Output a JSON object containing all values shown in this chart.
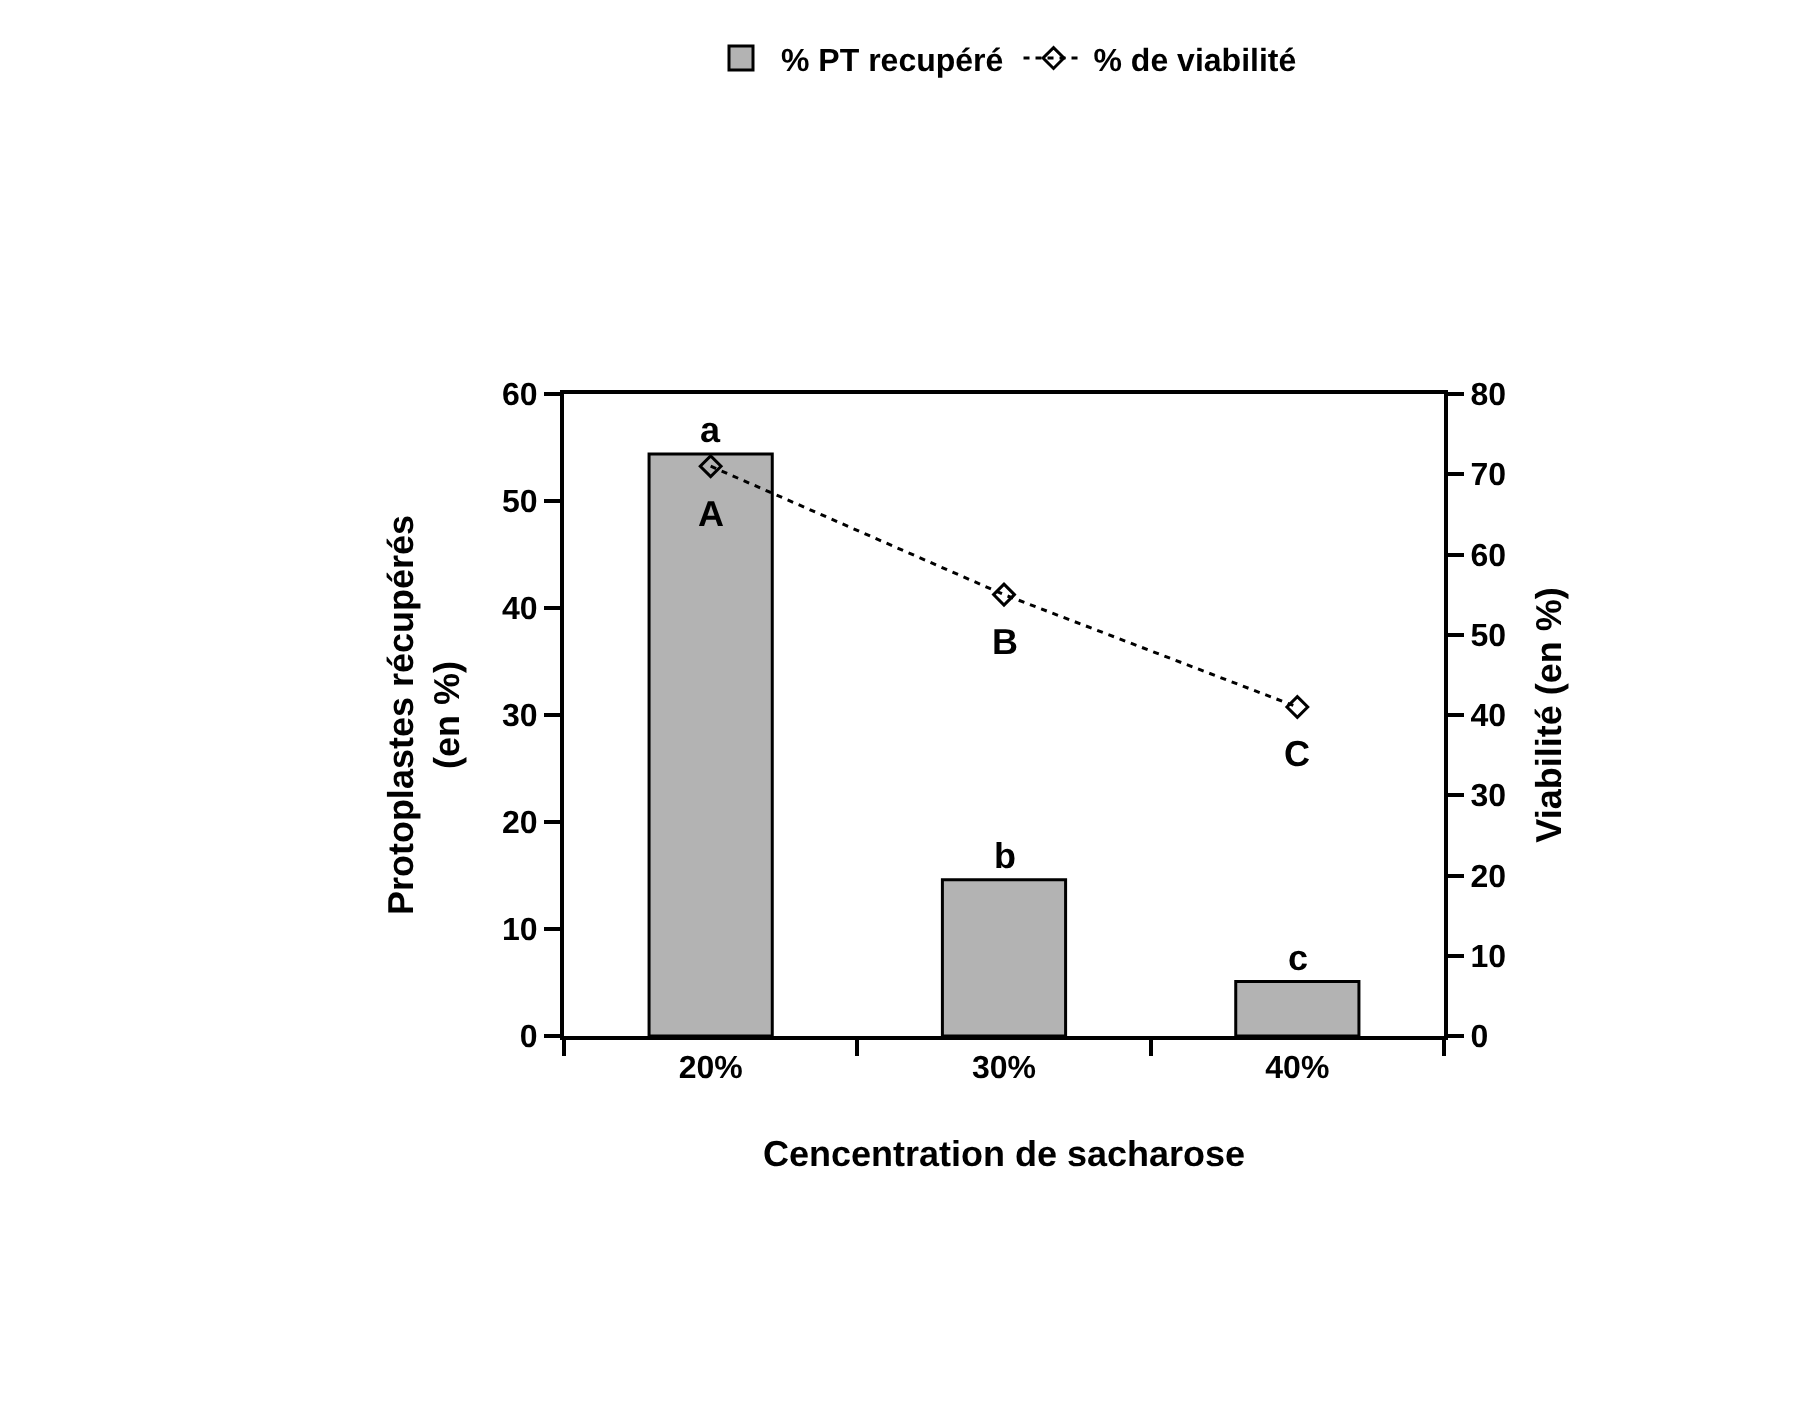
{
  "chart_data": {
    "type": "bar",
    "xlabel": "Cencentration de sacharose",
    "ylabel": "Protoplastes récupérés (en %)",
    "y2label": "Viabilité (en %)",
    "categories": [
      "20%",
      "30%",
      "40%"
    ],
    "series": [
      {
        "name": "% PT recupéré",
        "color": "#b3b3b3",
        "values": [
          54.4,
          14.6,
          5.1
        ]
      },
      {
        "name": "% de viabilité",
        "type": "line",
        "axis": "y2",
        "color": "#000000",
        "marker": "diamond",
        "line_style": "dotted",
        "values": [
          71,
          55,
          41
        ]
      }
    ],
    "ylim": [
      0,
      60
    ],
    "yticks": [
      0,
      10,
      20,
      30,
      40,
      50,
      60
    ],
    "y2lim": [
      0,
      80
    ],
    "y2ticks": [
      0,
      10,
      20,
      30,
      40,
      50,
      60,
      70,
      80
    ],
    "grid": false,
    "legend": "top",
    "annotations": [
      {
        "text": "a",
        "x": "20%",
        "y": 54.4
      },
      {
        "text": "b",
        "x": "30%",
        "y": 14.6
      },
      {
        "text": "c",
        "x": "40%",
        "y": 5.1
      },
      "A",
      "B",
      "C"
    ]
  }
}
